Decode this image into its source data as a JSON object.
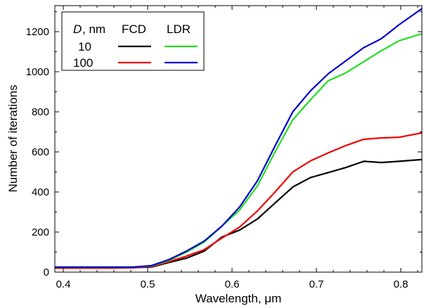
{
  "chart_data": {
    "type": "line",
    "xlabel": "Wavelength, μm",
    "ylabel": "Number of iterations",
    "xlim": [
      0.39,
      0.825
    ],
    "ylim": [
      0,
      1330
    ],
    "xticks": [
      0.4,
      0.5,
      0.6,
      0.7,
      0.8
    ],
    "xtick_labels": [
      "0.4",
      "0.5",
      "0.6",
      "0.7",
      "0.8"
    ],
    "yticks": [
      0,
      200,
      400,
      600,
      800,
      1000,
      1200
    ],
    "ytick_labels": [
      "0",
      "200",
      "400",
      "600",
      "800",
      "1000",
      "1200"
    ],
    "grid": false,
    "legend": {
      "placement": "top-left",
      "header_var": "D",
      "header_unit": ", nm",
      "col1": "FCD",
      "col2": "LDR",
      "rows": [
        "10",
        "100"
      ]
    },
    "x": [
      0.4,
      0.42,
      0.44,
      0.46,
      0.48,
      0.5,
      0.52,
      0.54,
      0.56,
      0.58,
      0.6,
      0.62,
      0.64,
      0.66,
      0.68,
      0.7,
      0.72,
      0.74,
      0.76,
      0.78,
      0.8,
      0.82
    ],
    "series": [
      {
        "name": "FCD, D = 10 nm",
        "color": "#000000",
        "x": [
          0.39,
          0.42,
          0.46,
          0.482,
          0.504,
          0.525,
          0.546,
          0.567,
          0.588,
          0.609,
          0.63,
          0.651,
          0.672,
          0.693,
          0.714,
          0.735,
          0.756,
          0.777,
          0.798,
          0.825
        ],
        "values": [
          22,
          22,
          22,
          22,
          25,
          48,
          70,
          105,
          175,
          210,
          265,
          345,
          425,
          472,
          497,
          522,
          553,
          547,
          553,
          562
        ]
      },
      {
        "name": "FCD, D = 100 nm",
        "color": "#ee0000",
        "x": [
          0.39,
          0.42,
          0.46,
          0.482,
          0.504,
          0.525,
          0.546,
          0.567,
          0.588,
          0.609,
          0.63,
          0.651,
          0.672,
          0.693,
          0.714,
          0.735,
          0.756,
          0.777,
          0.798,
          0.825
        ],
        "values": [
          20,
          20,
          20,
          22,
          27,
          52,
          80,
          112,
          170,
          225,
          305,
          400,
          500,
          555,
          595,
          632,
          663,
          670,
          673,
          695
        ]
      },
      {
        "name": "LDR, D = 10 nm",
        "color": "#22dd22",
        "x": [
          0.39,
          0.42,
          0.46,
          0.482,
          0.504,
          0.525,
          0.546,
          0.567,
          0.588,
          0.609,
          0.63,
          0.651,
          0.672,
          0.693,
          0.714,
          0.735,
          0.756,
          0.777,
          0.798,
          0.825
        ],
        "values": [
          25,
          25,
          25,
          25,
          30,
          58,
          100,
          150,
          230,
          310,
          430,
          600,
          760,
          860,
          955,
          995,
          1050,
          1105,
          1155,
          1190
        ]
      },
      {
        "name": "LDR, D = 100 nm",
        "color": "#0000cc",
        "x": [
          0.39,
          0.42,
          0.46,
          0.482,
          0.504,
          0.525,
          0.546,
          0.567,
          0.588,
          0.609,
          0.63,
          0.651,
          0.672,
          0.693,
          0.714,
          0.735,
          0.756,
          0.777,
          0.798,
          0.825
        ],
        "values": [
          25,
          25,
          25,
          25,
          32,
          62,
          105,
          155,
          230,
          325,
          455,
          630,
          800,
          905,
          990,
          1055,
          1120,
          1165,
          1235,
          1315
        ]
      }
    ]
  }
}
